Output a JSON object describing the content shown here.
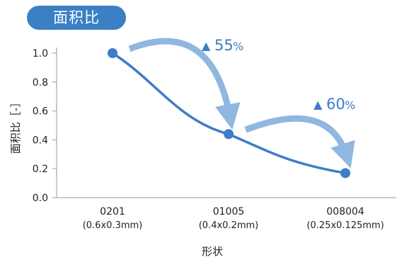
{
  "badge_label": "面积比",
  "chart_data": {
    "type": "line",
    "categories": [
      "0201",
      "01005",
      "008004"
    ],
    "category_sublabels": [
      "(0.6x0.3mm)",
      "(0.4x0.2mm)",
      "(0.25x0.125mm)"
    ],
    "values": [
      1.0,
      0.44,
      0.17
    ],
    "ylim": [
      0.0,
      1.0
    ],
    "yticks": [
      "0.0",
      "0.2",
      "0.4",
      "0.6",
      "0.8",
      "1.0"
    ],
    "xlabel": "形状",
    "ylabel": "面积比［-］",
    "line_color": "#3d7cc9",
    "arrow_color": "#8fb7e0",
    "annotation_color": "#3d7cc9",
    "annotations": [
      {
        "triangle": "▲",
        "value": "55",
        "unit": "%",
        "from": "0201",
        "to": "01005"
      },
      {
        "triangle": "▲",
        "value": "60",
        "unit": "%",
        "from": "01005",
        "to": "008004"
      }
    ]
  }
}
